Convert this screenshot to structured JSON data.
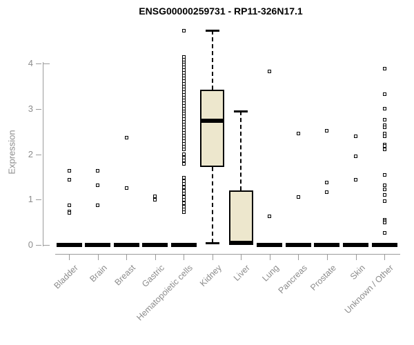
{
  "chart_data": {
    "type": "box",
    "title": "ENSG00000259731 - RP11-326N17.1",
    "ylabel": "Expression",
    "xlabel": "",
    "ylim": [
      0,
      4.85
    ],
    "yticks": [
      0,
      1,
      2,
      3,
      4
    ],
    "grid": false,
    "legend": "none",
    "colors": {
      "box_fill": "#EDE7CD",
      "box_border": "#000000",
      "axis": "#9a9a9a",
      "axis_text": "#8c8c8c",
      "title_text": "#000000"
    },
    "categories": [
      "Bladder",
      "Brain",
      "Breast",
      "Gastric",
      "Hematopoietic cells",
      "Kidney",
      "Liver",
      "Lung",
      "Pancreas",
      "Prostate",
      "Skin",
      "Unknown / Other"
    ],
    "boxes": [
      {
        "category": "Bladder",
        "collapsed": true,
        "median": 0,
        "outliers": [
          1.64,
          1.44,
          0.88,
          0.74,
          0.7
        ]
      },
      {
        "category": "Brain",
        "collapsed": true,
        "median": 0,
        "outliers": [
          1.64,
          1.31,
          0.88
        ]
      },
      {
        "category": "Breast",
        "collapsed": true,
        "median": 0,
        "outliers": [
          2.37,
          1.25
        ]
      },
      {
        "category": "Gastric",
        "collapsed": true,
        "median": 0,
        "outliers": [
          1.07,
          1.0
        ]
      },
      {
        "category": "Hematopoietic cells",
        "collapsed": true,
        "median": 0,
        "outliers": [
          4.72,
          4.15,
          4.09,
          4.03,
          3.97,
          3.91,
          3.85,
          3.79,
          3.73,
          3.67,
          3.61,
          3.55,
          3.49,
          3.43,
          3.37,
          3.31,
          3.25,
          3.19,
          3.13,
          3.07,
          3.01,
          2.95,
          2.89,
          2.83,
          2.77,
          2.71,
          2.65,
          2.59,
          2.53,
          2.47,
          2.41,
          2.35,
          2.29,
          2.23,
          2.17,
          2.11,
          2.0,
          1.93,
          1.86,
          1.79,
          1.48,
          1.41,
          1.34,
          1.27,
          1.2,
          1.13,
          1.06,
          0.99,
          0.92,
          0.85,
          0.78,
          0.72
        ]
      },
      {
        "category": "Kidney",
        "collapsed": false,
        "q1": 1.72,
        "median": 2.74,
        "q3": 3.42,
        "whisker_low": 0.05,
        "whisker_high": 4.73,
        "outliers": []
      },
      {
        "category": "Liver",
        "collapsed": false,
        "q1": 0.02,
        "median": 0.05,
        "q3": 1.2,
        "whisker_low": null,
        "whisker_high": 2.95,
        "outliers": []
      },
      {
        "category": "Lung",
        "collapsed": true,
        "median": 0,
        "outliers": [
          3.83,
          0.63
        ]
      },
      {
        "category": "Pancreas",
        "collapsed": true,
        "median": 0,
        "outliers": [
          2.45,
          1.05
        ]
      },
      {
        "category": "Prostate",
        "collapsed": true,
        "median": 0,
        "outliers": [
          2.52,
          1.37,
          1.17
        ]
      },
      {
        "category": "Skin",
        "collapsed": true,
        "median": 0,
        "outliers": [
          2.39,
          1.96,
          1.43
        ]
      },
      {
        "category": "Unknown / Other",
        "collapsed": true,
        "median": 0,
        "outliers": [
          3.89,
          3.32,
          3.0,
          2.76,
          2.64,
          2.6,
          2.45,
          2.39,
          2.22,
          2.18,
          2.11,
          1.55,
          1.32,
          1.22,
          1.1,
          0.97,
          0.56,
          0.52,
          0.49,
          0.27
        ]
      }
    ]
  }
}
